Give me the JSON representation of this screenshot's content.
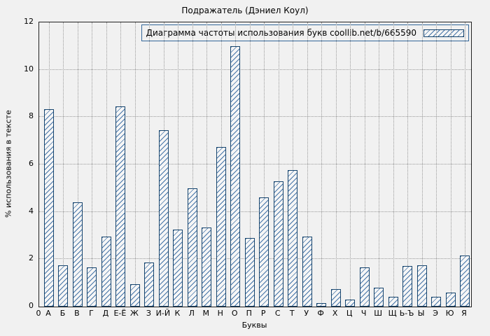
{
  "chart_data": {
    "type": "bar",
    "title": "Подражатель (Дэниел Коул)",
    "legend": "Диаграмма частоты использования букв coollib.net/b/665590",
    "xlabel": "Буквы",
    "ylabel": "% использования в тексте",
    "ylim": [
      0,
      12
    ],
    "yticks": [
      0,
      2,
      4,
      6,
      8,
      10,
      12
    ],
    "origin_tick": "0",
    "grid": true,
    "legend_position": "top-right",
    "categories": [
      "А",
      "Б",
      "В",
      "Г",
      "Д",
      "Е-Ё",
      "Ж",
      "З",
      "И-Й",
      "К",
      "Л",
      "М",
      "Н",
      "О",
      "П",
      "Р",
      "С",
      "Т",
      "У",
      "Ф",
      "Х",
      "Ц",
      "Ч",
      "Ш",
      "Щ",
      "Ь-Ъ",
      "Ы",
      "Э",
      "Ю",
      "Я"
    ],
    "values": [
      8.35,
      1.75,
      4.4,
      1.65,
      2.95,
      8.45,
      0.95,
      1.85,
      7.45,
      3.25,
      5.0,
      3.35,
      6.75,
      11.0,
      2.9,
      4.6,
      5.3,
      5.75,
      2.95,
      0.15,
      0.75,
      0.3,
      1.65,
      0.8,
      0.4,
      1.7,
      1.75,
      0.4,
      0.6,
      2.15
    ],
    "colors": {
      "bar_border": "#17456e",
      "bar_hatch": "#3a6ca3",
      "bar_fill": "#f6f6f6",
      "grid": "#9a9a9a",
      "background": "#f1f1f1"
    }
  }
}
